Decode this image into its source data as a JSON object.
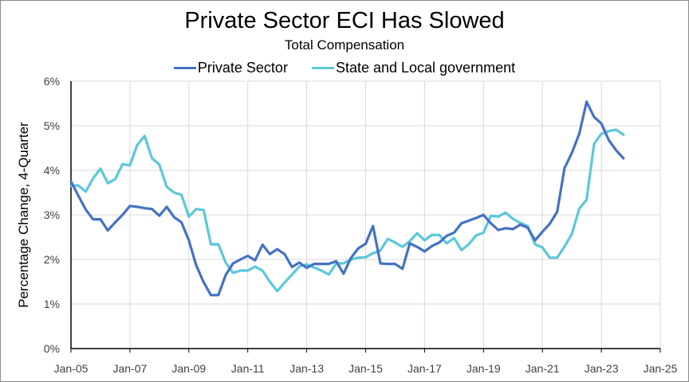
{
  "chart_data": {
    "type": "line",
    "title": "Private Sector ECI Has Slowed",
    "subtitle": "Total Compensation",
    "xlabel": "",
    "ylabel": "Percentage Change, 4-Quarter",
    "ylim": [
      0,
      6
    ],
    "yticks": [
      "0%",
      "1%",
      "2%",
      "3%",
      "4%",
      "5%",
      "6%"
    ],
    "xlim_years": [
      2005,
      2025
    ],
    "xticks": [
      "Jan-05",
      "Jan-07",
      "Jan-09",
      "Jan-11",
      "Jan-13",
      "Jan-15",
      "Jan-17",
      "Jan-19",
      "Jan-21",
      "Jan-23",
      "Jan-25"
    ],
    "x_start": "2005 Q1",
    "x_step": "quarter",
    "grid": true,
    "legend_position": "top",
    "series": [
      {
        "name": "Private Sector",
        "color": "#4472C4",
        "values": [
          3.75,
          3.43,
          3.12,
          2.9,
          2.9,
          2.65,
          2.83,
          3.0,
          3.2,
          3.18,
          3.15,
          3.13,
          2.98,
          3.18,
          2.95,
          2.83,
          2.43,
          1.87,
          1.49,
          1.2,
          1.2,
          1.65,
          1.91,
          2.0,
          2.08,
          1.98,
          2.33,
          2.12,
          2.23,
          2.12,
          1.83,
          1.93,
          1.81,
          1.9,
          1.9,
          1.9,
          1.96,
          1.68,
          2.03,
          2.25,
          2.35,
          2.75,
          1.91,
          1.9,
          1.9,
          1.79,
          2.36,
          2.28,
          2.18,
          2.3,
          2.38,
          2.53,
          2.6,
          2.81,
          2.87,
          2.93,
          3.0,
          2.81,
          2.66,
          2.7,
          2.68,
          2.78,
          2.71,
          2.43,
          2.62,
          2.8,
          3.07,
          4.05,
          4.39,
          4.82,
          5.54,
          5.2,
          5.05,
          4.68,
          4.45,
          4.27
        ]
      },
      {
        "name": "State and Local government",
        "color": "#5BC8DA",
        "values": [
          3.65,
          3.66,
          3.52,
          3.82,
          4.04,
          3.71,
          3.8,
          4.14,
          4.11,
          4.57,
          4.77,
          4.27,
          4.13,
          3.63,
          3.5,
          3.45,
          2.96,
          3.13,
          3.11,
          2.34,
          2.34,
          1.93,
          1.7,
          1.75,
          1.75,
          1.84,
          1.75,
          1.5,
          1.29,
          1.48,
          1.66,
          1.84,
          1.89,
          1.82,
          1.75,
          1.66,
          1.91,
          1.91,
          2.0,
          2.04,
          2.05,
          2.14,
          2.2,
          2.46,
          2.38,
          2.28,
          2.41,
          2.59,
          2.43,
          2.55,
          2.55,
          2.36,
          2.48,
          2.21,
          2.34,
          2.54,
          2.6,
          2.98,
          2.96,
          3.05,
          2.91,
          2.82,
          2.75,
          2.34,
          2.27,
          2.04,
          2.04,
          2.29,
          2.57,
          3.14,
          3.34,
          4.59,
          4.82,
          4.88,
          4.91,
          4.8
        ]
      }
    ]
  }
}
